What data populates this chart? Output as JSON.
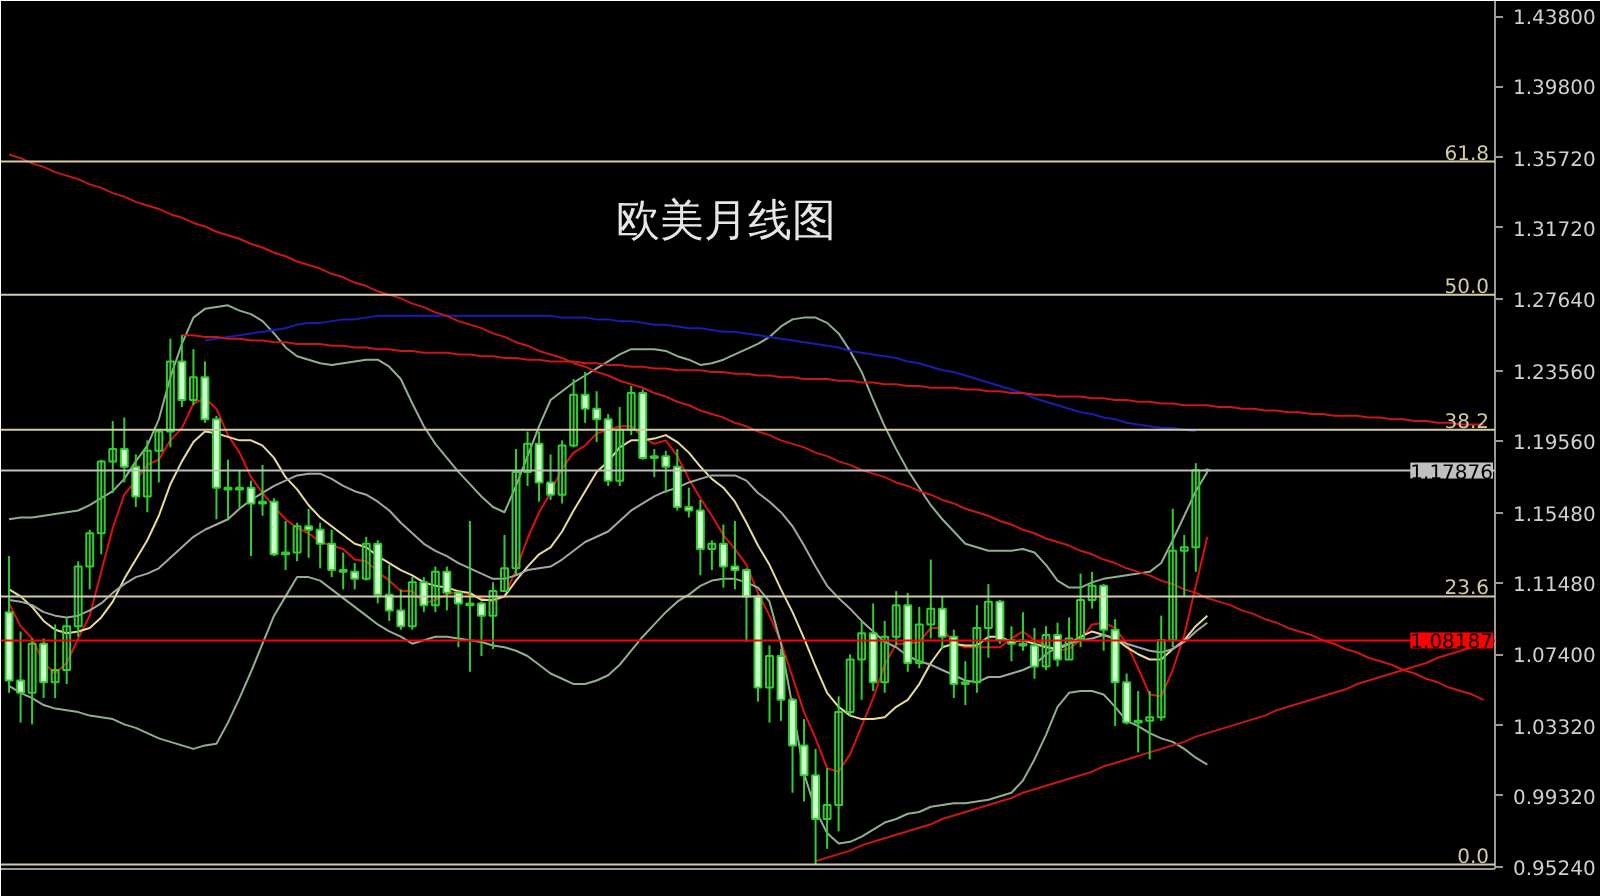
{
  "chart_data": {
    "type": "candlestick",
    "title": "欧美月线图",
    "categories": [
      null,
      null,
      null,
      null,
      null,
      null,
      null,
      null,
      null,
      null,
      null,
      null,
      null,
      null,
      null,
      null,
      null,
      null,
      null,
      null,
      null,
      null,
      null,
      null,
      null,
      null,
      null,
      null,
      null,
      null,
      null,
      null,
      null,
      null,
      null,
      null,
      null,
      null,
      null,
      null,
      null,
      null,
      null,
      null,
      null,
      null,
      null,
      null,
      null,
      null,
      null,
      null,
      null,
      null,
      null,
      null,
      null,
      null,
      null,
      null,
      null,
      null,
      null,
      null,
      null,
      null,
      null,
      null,
      null,
      null,
      null,
      null,
      null,
      null,
      null,
      null,
      null,
      null,
      null,
      null,
      null,
      null,
      null,
      null,
      null,
      null,
      null,
      null,
      null,
      null,
      null,
      null,
      null,
      null,
      null,
      null,
      null,
      null,
      null,
      null,
      null,
      null,
      null,
      null,
      null,
      null,
      null,
      null,
      null,
      null,
      null,
      null,
      null,
      null,
      null,
      null,
      null,
      null,
      null,
      null,
      null,
      null,
      null,
      null,
      null,
      null,
      null,
      null,
      null
    ],
    "ohlc": [
      [
        1.098,
        1.13,
        1.052,
        1.059
      ],
      [
        1.059,
        1.087,
        1.035,
        1.052
      ],
      [
        1.052,
        1.083,
        1.034,
        1.08
      ],
      [
        1.08,
        1.083,
        1.049,
        1.058
      ],
      [
        1.058,
        1.091,
        1.049,
        1.065
      ],
      [
        1.065,
        1.095,
        1.057,
        1.09
      ],
      [
        1.09,
        1.127,
        1.084,
        1.124
      ],
      [
        1.124,
        1.145,
        1.111,
        1.143
      ],
      [
        1.143,
        1.185,
        1.131,
        1.184
      ],
      [
        1.184,
        1.207,
        1.166,
        1.191
      ],
      [
        1.191,
        1.209,
        1.172,
        1.181
      ],
      [
        1.181,
        1.188,
        1.158,
        1.164
      ],
      [
        1.164,
        1.196,
        1.155,
        1.19
      ],
      [
        1.19,
        1.202,
        1.172,
        1.201
      ],
      [
        1.201,
        1.254,
        1.192,
        1.241
      ],
      [
        1.241,
        1.256,
        1.215,
        1.219
      ],
      [
        1.219,
        1.248,
        1.216,
        1.232
      ],
      [
        1.232,
        1.241,
        1.206,
        1.208
      ],
      [
        1.208,
        1.21,
        1.151,
        1.169
      ],
      [
        1.169,
        1.185,
        1.151,
        1.168
      ],
      [
        1.168,
        1.179,
        1.157,
        1.169
      ],
      [
        1.169,
        1.173,
        1.13,
        1.16
      ],
      [
        1.16,
        1.182,
        1.153,
        1.161
      ],
      [
        1.161,
        1.163,
        1.13,
        1.131
      ],
      [
        1.131,
        1.15,
        1.122,
        1.132
      ],
      [
        1.132,
        1.149,
        1.127,
        1.147
      ],
      [
        1.147,
        1.157,
        1.129,
        1.145
      ],
      [
        1.145,
        1.149,
        1.123,
        1.137
      ],
      [
        1.137,
        1.145,
        1.118,
        1.122
      ],
      [
        1.122,
        1.132,
        1.111,
        1.121
      ],
      [
        1.121,
        1.126,
        1.111,
        1.117
      ],
      [
        1.117,
        1.141,
        1.116,
        1.137
      ],
      [
        1.137,
        1.139,
        1.103,
        1.108
      ],
      [
        1.108,
        1.125,
        1.093,
        1.099
      ],
      [
        1.099,
        1.111,
        1.088,
        1.09
      ],
      [
        1.09,
        1.118,
        1.088,
        1.115
      ],
      [
        1.115,
        1.118,
        1.098,
        1.102
      ],
      [
        1.102,
        1.124,
        1.098,
        1.121
      ],
      [
        1.121,
        1.124,
        1.099,
        1.109
      ],
      [
        1.109,
        1.11,
        1.078,
        1.103
      ],
      [
        1.102,
        1.15,
        1.064,
        1.103
      ],
      [
        1.103,
        1.104,
        1.073,
        1.096
      ],
      [
        1.096,
        1.115,
        1.077,
        1.11
      ],
      [
        1.11,
        1.142,
        1.11,
        1.123
      ],
      [
        1.123,
        1.191,
        1.119,
        1.178
      ],
      [
        1.178,
        1.201,
        1.17,
        1.194
      ],
      [
        1.194,
        1.201,
        1.161,
        1.172
      ],
      [
        1.172,
        1.188,
        1.162,
        1.165
      ],
      [
        1.165,
        1.196,
        1.16,
        1.193
      ],
      [
        1.193,
        1.231,
        1.192,
        1.222
      ],
      [
        1.222,
        1.235,
        1.206,
        1.214
      ],
      [
        1.214,
        1.224,
        1.195,
        1.208
      ],
      [
        1.208,
        1.211,
        1.17,
        1.173
      ],
      [
        1.173,
        1.215,
        1.17,
        1.202
      ],
      [
        1.202,
        1.227,
        1.199,
        1.223
      ],
      [
        1.223,
        1.225,
        1.185,
        1.186
      ],
      [
        1.186,
        1.191,
        1.175,
        1.187
      ],
      [
        1.187,
        1.19,
        1.166,
        1.181
      ],
      [
        1.181,
        1.191,
        1.156,
        1.158
      ],
      [
        1.158,
        1.169,
        1.152,
        1.156
      ],
      [
        1.156,
        1.162,
        1.119,
        1.134
      ],
      [
        1.134,
        1.139,
        1.122,
        1.137
      ],
      [
        1.137,
        1.148,
        1.112,
        1.124
      ],
      [
        1.124,
        1.15,
        1.111,
        1.122
      ],
      [
        1.122,
        1.123,
        1.081,
        1.107
      ],
      [
        1.107,
        1.108,
        1.047,
        1.055
      ],
      [
        1.055,
        1.079,
        1.035,
        1.073
      ],
      [
        1.073,
        1.077,
        1.036,
        1.048
      ],
      [
        1.048,
        1.049,
        0.995,
        1.022
      ],
      [
        1.022,
        1.037,
        0.99,
        1.005
      ],
      [
        1.005,
        1.02,
        0.954,
        0.98
      ],
      [
        0.98,
        1.009,
        0.963,
        0.988
      ],
      [
        0.988,
        1.05,
        0.973,
        1.041
      ],
      [
        1.041,
        1.074,
        1.039,
        1.071
      ],
      [
        1.071,
        1.093,
        1.048,
        1.086
      ],
      [
        1.086,
        1.103,
        1.053,
        1.058
      ],
      [
        1.058,
        1.093,
        1.052,
        1.084
      ],
      [
        1.084,
        1.11,
        1.079,
        1.102
      ],
      [
        1.102,
        1.109,
        1.064,
        1.069
      ],
      [
        1.069,
        1.101,
        1.066,
        1.091
      ],
      [
        1.091,
        1.128,
        1.083,
        1.1
      ],
      [
        1.1,
        1.107,
        1.077,
        1.084
      ],
      [
        1.084,
        1.088,
        1.049,
        1.057
      ],
      [
        1.057,
        1.07,
        1.045,
        1.058
      ],
      [
        1.058,
        1.102,
        1.052,
        1.089
      ],
      [
        1.089,
        1.114,
        1.072,
        1.104
      ],
      [
        1.104,
        1.105,
        1.08,
        1.082
      ],
      [
        1.082,
        1.09,
        1.07,
        1.08
      ],
      [
        1.08,
        1.098,
        1.076,
        1.079
      ],
      [
        1.079,
        1.089,
        1.06,
        1.067
      ],
      [
        1.067,
        1.09,
        1.065,
        1.085
      ],
      [
        1.085,
        1.092,
        1.067,
        1.071
      ],
      [
        1.071,
        1.095,
        1.071,
        1.083
      ],
      [
        1.083,
        1.12,
        1.078,
        1.105
      ],
      [
        1.105,
        1.121,
        1.1,
        1.113
      ],
      [
        1.113,
        1.114,
        1.076,
        1.088
      ],
      [
        1.088,
        1.094,
        1.033,
        1.058
      ],
      [
        1.058,
        1.063,
        1.034,
        1.035
      ],
      [
        1.035,
        1.053,
        1.018,
        1.036
      ],
      [
        1.036,
        1.053,
        1.014,
        1.038
      ],
      [
        1.038,
        1.096,
        1.036,
        1.082
      ],
      [
        1.082,
        1.157,
        1.078,
        1.133
      ],
      [
        1.133,
        1.142,
        1.107,
        1.135
      ],
      [
        1.135,
        1.183,
        1.121,
        1.179
      ],
      [
        1.179,
        1.18,
        1.178,
        1.179
      ],
      null,
      null,
      null,
      null,
      null,
      null,
      null,
      null,
      null,
      null,
      null,
      null,
      null,
      null,
      null,
      null,
      null,
      null,
      null,
      null,
      null,
      null,
      null,
      null
    ],
    "color": "#32cd32",
    "colors": [
      "#ccffcc",
      "#ccffcc",
      "#32cd32",
      "#ccffcc",
      "#32cd32",
      "#32cd32",
      "#32cd32",
      "#32cd32",
      "#32cd32",
      "#32cd32",
      "#ccffcc",
      "#ccffcc",
      "#32cd32",
      "#32cd32",
      "#32cd32",
      "#ccffcc",
      "#32cd32",
      "#ccffcc",
      "#ccffcc",
      "#ccffcc",
      "#32cd32",
      "#ccffcc",
      "#32cd32",
      "#ccffcc",
      "#32cd32",
      "#32cd32",
      "#ccffcc",
      "#ccffcc",
      "#ccffcc",
      "#ccffcc",
      "#ccffcc",
      "#32cd32",
      "#ccffcc",
      "#ccffcc",
      "#ccffcc",
      "#32cd32",
      "#ccffcc",
      "#32cd32",
      "#ccffcc",
      "#ccffcc",
      "#32cd32",
      "#ccffcc",
      "#32cd32",
      "#32cd32",
      "#32cd32",
      "#32cd32",
      "#ccffcc",
      "#ccffcc",
      "#32cd32",
      "#32cd32",
      "#ccffcc",
      "#ccffcc",
      "#ccffcc",
      "#32cd32",
      "#32cd32",
      "#ccffcc",
      "#32cd32",
      "#ccffcc",
      "#ccffcc",
      "#ccffcc",
      "#ccffcc",
      "#32cd32",
      "#ccffcc",
      "#ccffcc",
      "#ccffcc",
      "#ccffcc",
      "#32cd32",
      "#ccffcc",
      "#ccffcc",
      "#ccffcc",
      "#ccffcc",
      "#32cd32",
      "#32cd32",
      "#32cd32",
      "#32cd32",
      "#ccffcc",
      "#32cd32",
      "#32cd32",
      "#ccffcc",
      "#32cd32",
      "#32cd32",
      "#ccffcc",
      "#ccffcc",
      "#32cd32",
      "#32cd32",
      "#32cd32",
      "#ccffcc",
      "#ccffcc",
      "#ccffcc",
      "#ccffcc",
      "#32cd32",
      "#ccffcc",
      "#32cd32",
      "#32cd32",
      "#32cd32",
      "#ccffcc",
      "#ccffcc",
      "#ccffcc",
      "#32cd32",
      "#32cd32",
      "#32cd32",
      "#32cd32",
      "#32cd32",
      "#32cd32",
      "#32cd32",
      null,
      null,
      null,
      null,
      null,
      null,
      null,
      null,
      null,
      null,
      null,
      null,
      null,
      null,
      null,
      null,
      null,
      null,
      null,
      null,
      null,
      null,
      null,
      null
    ],
    "ylim": [
      0.9515,
      1.4466
    ],
    "yticks": [
      {
        "value": 1.438,
        "label": "1.43800"
      },
      {
        "value": 1.398,
        "label": "1.39800"
      },
      {
        "value": 1.3572,
        "label": "1.35720"
      },
      {
        "value": 1.3172,
        "label": "1.31720"
      },
      {
        "value": 1.2764,
        "label": "1.27640"
      },
      {
        "value": 1.2356,
        "label": "1.23560"
      },
      {
        "value": 1.1956,
        "label": "1.19560"
      },
      {
        "value": 1.1548,
        "label": "1.15480"
      },
      {
        "value": 1.1148,
        "label": "1.11480"
      },
      {
        "value": 1.074,
        "label": "1.07400"
      },
      {
        "value": 1.0332,
        "label": "1.03320"
      },
      {
        "value": 0.9932,
        "label": "0.99320"
      },
      {
        "value": 0.9524,
        "label": "0.95240"
      }
    ],
    "tick_labels": "y",
    "series": [
      {
        "type": "line",
        "color": "#e01010",
        "values": [
          1.103,
          1.09,
          1.083,
          1.069,
          1.063,
          1.069,
          1.083,
          1.096,
          1.121,
          1.146,
          1.165,
          1.173,
          1.182,
          1.185,
          1.196,
          1.203,
          1.217,
          1.22,
          1.214,
          1.199,
          1.189,
          1.175,
          1.166,
          1.158,
          1.151,
          1.146,
          1.143,
          1.138,
          1.136,
          1.134,
          1.128,
          1.127,
          1.121,
          1.116,
          1.11,
          1.11,
          1.103,
          1.105,
          1.108,
          1.11,
          1.108,
          1.106,
          1.104,
          1.107,
          1.122,
          1.14,
          1.155,
          1.166,
          1.18,
          1.189,
          1.193,
          1.2,
          1.202,
          1.204,
          1.204,
          1.198,
          1.194,
          1.196,
          1.187,
          1.174,
          1.163,
          1.153,
          1.142,
          1.134,
          1.125,
          1.109,
          1.096,
          1.081,
          1.061,
          1.041,
          1.026,
          1.009,
          1.007,
          1.017,
          1.033,
          1.049,
          1.068,
          1.08,
          1.08,
          1.081,
          1.089,
          1.089,
          1.08,
          1.078,
          1.078,
          1.078,
          1.078,
          1.083,
          1.087,
          1.082,
          1.079,
          1.076,
          1.077,
          1.082,
          1.091,
          1.092,
          1.089,
          1.08,
          1.066,
          1.051,
          1.05,
          1.065,
          1.085,
          1.113,
          1.141,
          null,
          null,
          null,
          null,
          null,
          null,
          null,
          null,
          null,
          null,
          null,
          null,
          null,
          null,
          null,
          null,
          null,
          null,
          null,
          null,
          null,
          null,
          null,
          null
        ]
      },
      {
        "type": "line",
        "color": "#e8dc96",
        "values": [
          1.111,
          1.107,
          1.101,
          1.093,
          1.088,
          1.086,
          1.087,
          1.089,
          1.095,
          1.104,
          1.117,
          1.128,
          1.139,
          1.153,
          1.171,
          1.184,
          1.195,
          1.201,
          1.2,
          1.198,
          1.196,
          1.196,
          1.193,
          1.186,
          1.175,
          1.168,
          1.159,
          1.152,
          1.147,
          1.142,
          1.137,
          1.135,
          1.13,
          1.126,
          1.122,
          1.119,
          1.115,
          1.113,
          1.112,
          1.11,
          1.109,
          1.105,
          1.105,
          1.107,
          1.116,
          1.124,
          1.131,
          1.135,
          1.144,
          1.156,
          1.167,
          1.178,
          1.184,
          1.192,
          1.196,
          1.196,
          1.197,
          1.199,
          1.195,
          1.189,
          1.181,
          1.174,
          1.169,
          1.161,
          1.149,
          1.136,
          1.125,
          1.111,
          1.098,
          1.083,
          1.067,
          1.052,
          1.044,
          1.039,
          1.037,
          1.037,
          1.038,
          1.044,
          1.048,
          1.057,
          1.069,
          1.078,
          1.08,
          1.079,
          1.079,
          1.084,
          1.084,
          1.081,
          1.082,
          1.08,
          1.078,
          1.077,
          1.08,
          1.084,
          1.087,
          1.085,
          1.083,
          1.078,
          1.074,
          1.071,
          1.071,
          1.077,
          1.082,
          1.09,
          1.096,
          null,
          null,
          null,
          null,
          null,
          null,
          null,
          null,
          null,
          null,
          null,
          null,
          null,
          null,
          null,
          null,
          null,
          null,
          null,
          null,
          null,
          null,
          null,
          null
        ]
      },
      {
        "type": "line",
        "color": "#a0a8a0",
        "values": [
          1.105,
          1.104,
          1.102,
          1.098,
          1.096,
          1.095,
          1.096,
          1.099,
          1.103,
          1.109,
          1.114,
          1.118,
          1.12,
          1.123,
          1.129,
          1.135,
          1.141,
          1.145,
          1.148,
          1.151,
          1.157,
          1.162,
          1.166,
          1.17,
          1.173,
          1.176,
          1.177,
          1.177,
          1.174,
          1.17,
          1.167,
          1.165,
          1.161,
          1.156,
          1.149,
          1.143,
          1.137,
          1.133,
          1.13,
          1.126,
          1.123,
          1.12,
          1.117,
          1.117,
          1.119,
          1.122,
          1.123,
          1.124,
          1.128,
          1.133,
          1.138,
          1.141,
          1.144,
          1.15,
          1.156,
          1.16,
          1.164,
          1.167,
          1.169,
          1.172,
          1.174,
          1.176,
          1.176,
          1.176,
          1.173,
          1.166,
          1.161,
          1.155,
          1.147,
          1.136,
          1.124,
          1.113,
          1.106,
          1.1,
          1.093,
          1.087,
          1.081,
          1.078,
          1.073,
          1.07,
          1.068,
          1.065,
          1.062,
          1.059,
          1.058,
          1.061,
          1.061,
          1.063,
          1.065,
          1.068,
          1.074,
          1.078,
          1.08,
          1.082,
          1.083,
          1.085,
          1.083,
          1.08,
          1.078,
          1.076,
          1.075,
          1.077,
          1.081,
          1.087,
          1.092,
          null,
          null,
          null,
          null,
          null,
          null,
          null,
          null,
          null,
          null,
          null,
          null,
          null,
          null,
          null,
          null,
          null,
          null,
          null,
          null,
          null,
          null,
          null,
          null
        ]
      },
      {
        "type": "line",
        "color": "#8fb08f",
        "values": [
          1.151,
          1.152,
          1.152,
          1.153,
          1.154,
          1.155,
          1.156,
          1.159,
          1.163,
          1.167,
          1.174,
          1.184,
          1.193,
          1.208,
          1.232,
          1.251,
          1.266,
          1.271,
          1.272,
          1.273,
          1.27,
          1.268,
          1.264,
          1.257,
          1.249,
          1.244,
          1.242,
          1.24,
          1.239,
          1.24,
          1.241,
          1.242,
          1.242,
          1.238,
          1.231,
          1.217,
          1.204,
          1.194,
          1.186,
          1.178,
          1.171,
          1.164,
          1.158,
          1.155,
          1.17,
          1.187,
          1.204,
          1.219,
          1.224,
          1.229,
          1.233,
          1.237,
          1.241,
          1.245,
          1.248,
          1.248,
          1.248,
          1.247,
          1.244,
          1.242,
          1.239,
          1.24,
          1.242,
          1.245,
          1.248,
          1.251,
          1.255,
          1.261,
          1.265,
          1.266,
          1.266,
          1.263,
          1.257,
          1.247,
          1.235,
          1.219,
          1.204,
          1.191,
          1.179,
          1.169,
          1.159,
          1.151,
          1.144,
          1.137,
          1.135,
          1.133,
          1.133,
          1.133,
          1.134,
          1.132,
          1.125,
          1.116,
          1.112,
          1.112,
          1.115,
          1.117,
          1.118,
          1.119,
          1.12,
          1.121,
          1.126,
          1.139,
          1.153,
          1.167,
          1.178,
          null,
          null,
          null,
          null,
          null,
          null,
          null,
          null,
          null,
          null,
          null,
          null,
          null,
          null,
          null,
          null,
          null,
          null,
          null,
          null,
          null,
          null,
          null,
          null
        ]
      },
      {
        "type": "line",
        "color": "#8fb08f",
        "values": [
          1.056,
          1.052,
          1.049,
          1.045,
          1.043,
          1.042,
          1.041,
          1.039,
          1.038,
          1.037,
          1.034,
          1.032,
          1.029,
          1.026,
          1.024,
          1.022,
          1.02,
          1.022,
          1.023,
          1.035,
          1.049,
          1.064,
          1.08,
          1.096,
          1.107,
          1.118,
          1.118,
          1.116,
          1.111,
          1.106,
          1.101,
          1.096,
          1.091,
          1.087,
          1.084,
          1.08,
          1.082,
          1.084,
          1.084,
          1.083,
          1.082,
          1.081,
          1.079,
          1.078,
          1.076,
          1.073,
          1.068,
          1.063,
          1.06,
          1.057,
          1.057,
          1.059,
          1.062,
          1.068,
          1.076,
          1.084,
          1.091,
          1.098,
          1.104,
          1.108,
          1.113,
          1.116,
          1.117,
          1.117,
          1.115,
          1.112,
          1.104,
          1.08,
          1.044,
          1.006,
          0.985,
          0.972,
          0.966,
          0.967,
          0.97,
          0.974,
          0.978,
          0.98,
          0.983,
          0.984,
          0.987,
          0.988,
          0.989,
          0.989,
          0.99,
          0.991,
          0.993,
          0.995,
          1.002,
          1.014,
          1.028,
          1.044,
          1.052,
          1.053,
          1.053,
          1.051,
          1.044,
          1.036,
          1.033,
          1.029,
          1.026,
          1.024,
          1.02,
          1.015,
          1.011,
          null,
          null,
          null,
          null,
          null,
          null,
          null,
          null,
          null,
          null,
          null,
          null,
          null,
          null,
          null,
          null,
          null,
          null,
          null,
          null,
          null,
          null,
          null,
          null
        ]
      },
      {
        "type": "line",
        "color": "#1c1cb0",
        "values": [
          null,
          null,
          null,
          null,
          null,
          null,
          null,
          null,
          null,
          null,
          null,
          null,
          null,
          null,
          null,
          null,
          null,
          1.253,
          1.254,
          1.255,
          1.256,
          1.257,
          1.258,
          1.259,
          1.26,
          1.262,
          1.263,
          1.263,
          1.264,
          1.265,
          1.265,
          1.266,
          1.267,
          1.267,
          1.267,
          1.267,
          1.267,
          1.267,
          1.267,
          1.267,
          1.267,
          1.267,
          1.267,
          1.267,
          1.267,
          1.267,
          1.267,
          1.267,
          1.266,
          1.266,
          1.266,
          1.265,
          1.265,
          1.264,
          1.264,
          1.263,
          1.262,
          1.262,
          1.261,
          1.26,
          1.26,
          1.259,
          1.258,
          1.258,
          1.257,
          1.256,
          1.255,
          1.254,
          1.253,
          1.252,
          1.251,
          1.25,
          1.249,
          1.247,
          1.246,
          1.245,
          1.244,
          1.243,
          1.241,
          1.24,
          1.238,
          1.236,
          1.235,
          1.233,
          1.231,
          1.229,
          1.227,
          1.225,
          1.223,
          1.22,
          1.218,
          1.216,
          1.214,
          1.212,
          1.211,
          1.209,
          1.208,
          1.206,
          1.205,
          1.204,
          1.203,
          1.203,
          1.202,
          1.201,
          null,
          null,
          null,
          null,
          null,
          null,
          null,
          null,
          null,
          null,
          null,
          null,
          null,
          null,
          null,
          null,
          null,
          null,
          null,
          null,
          null,
          null,
          null,
          null,
          null
        ]
      },
      {
        "type": "line",
        "color": "#c81818",
        "values": [
          1.359,
          1.357,
          1.354,
          1.352,
          1.349,
          1.347,
          1.345,
          1.342,
          1.34,
          1.337,
          1.335,
          1.332,
          1.33,
          1.328,
          1.325,
          1.323,
          1.32,
          1.318,
          1.315,
          1.313,
          1.311,
          1.308,
          1.306,
          1.303,
          1.301,
          1.298,
          1.296,
          1.294,
          1.291,
          1.289,
          1.286,
          1.284,
          1.281,
          1.279,
          1.277,
          1.274,
          1.272,
          1.269,
          1.267,
          1.264,
          1.262,
          1.26,
          1.257,
          1.255,
          1.252,
          1.25,
          1.247,
          1.245,
          1.243,
          1.24,
          1.238,
          1.235,
          1.233,
          1.23,
          1.228,
          1.226,
          1.223,
          1.221,
          1.218,
          1.216,
          1.213,
          1.211,
          1.209,
          1.206,
          1.204,
          1.201,
          1.199,
          1.196,
          1.194,
          1.192,
          1.189,
          1.187,
          1.184,
          1.182,
          1.179,
          1.177,
          1.175,
          1.172,
          1.17,
          1.167,
          1.165,
          1.162,
          1.16,
          1.157,
          1.155,
          1.153,
          1.15,
          1.148,
          1.145,
          1.143,
          1.14,
          1.138,
          1.136,
          1.133,
          1.131,
          1.128,
          1.126,
          1.123,
          1.121,
          1.119,
          1.116,
          1.114,
          1.111,
          1.109,
          1.106,
          1.104,
          1.102,
          1.099,
          1.097,
          1.094,
          1.092,
          1.089,
          1.087,
          1.085,
          1.082,
          1.08,
          1.077,
          1.075,
          1.072,
          1.07,
          1.068,
          1.065,
          1.063,
          1.06,
          1.058,
          1.055,
          1.053,
          1.051,
          1.048
        ]
      },
      {
        "type": "line",
        "color": "#c81818",
        "values": [
          null,
          null,
          null,
          null,
          null,
          null,
          null,
          null,
          null,
          null,
          null,
          null,
          null,
          null,
          null,
          1.256,
          1.256,
          1.255,
          1.255,
          1.254,
          1.254,
          1.253,
          1.253,
          1.252,
          1.252,
          1.251,
          1.251,
          1.251,
          1.25,
          1.25,
          1.249,
          1.249,
          1.248,
          1.248,
          1.247,
          1.247,
          1.246,
          1.246,
          1.246,
          1.245,
          1.245,
          1.244,
          1.244,
          1.243,
          1.243,
          1.242,
          1.242,
          1.241,
          1.241,
          1.241,
          1.24,
          1.24,
          1.239,
          1.239,
          1.238,
          1.238,
          1.237,
          1.237,
          1.236,
          1.236,
          1.236,
          1.235,
          1.235,
          1.234,
          1.234,
          1.233,
          1.233,
          1.232,
          1.232,
          1.231,
          1.231,
          1.231,
          1.23,
          1.23,
          1.229,
          1.229,
          1.228,
          1.228,
          1.227,
          1.227,
          1.226,
          1.226,
          1.226,
          1.225,
          1.225,
          1.224,
          1.224,
          1.223,
          1.223,
          1.222,
          1.222,
          1.221,
          1.221,
          1.221,
          1.22,
          1.22,
          1.219,
          1.219,
          1.218,
          1.218,
          1.217,
          1.217,
          1.216,
          1.216,
          1.216,
          1.215,
          1.215,
          1.214,
          1.214,
          1.213,
          1.213,
          1.212,
          1.212,
          1.211,
          1.211,
          1.21,
          1.21,
          1.21,
          1.209,
          1.209,
          1.208,
          1.208,
          1.207,
          1.207,
          1.206,
          1.206,
          1.205,
          1.205,
          1.205
        ]
      },
      {
        "type": "line",
        "color": "#c81818",
        "values": [
          null,
          null,
          null,
          null,
          null,
          null,
          null,
          null,
          null,
          null,
          null,
          null,
          null,
          null,
          null,
          null,
          null,
          null,
          null,
          null,
          null,
          null,
          null,
          null,
          null,
          null,
          null,
          null,
          null,
          null,
          null,
          null,
          null,
          null,
          null,
          null,
          null,
          null,
          null,
          null,
          null,
          null,
          null,
          null,
          null,
          null,
          null,
          null,
          null,
          null,
          null,
          null,
          null,
          null,
          null,
          null,
          null,
          null,
          null,
          null,
          null,
          null,
          null,
          null,
          null,
          null,
          null,
          null,
          null,
          null,
          0.956,
          0.958,
          0.96,
          0.962,
          0.965,
          0.967,
          0.969,
          0.971,
          0.973,
          0.975,
          0.977,
          0.98,
          0.982,
          0.984,
          0.986,
          0.988,
          0.99,
          0.992,
          0.995,
          0.997,
          0.999,
          1.001,
          1.003,
          1.005,
          1.007,
          1.01,
          1.012,
          1.014,
          1.016,
          1.018,
          1.02,
          1.022,
          1.024,
          1.027,
          1.029,
          1.031,
          1.033,
          1.035,
          1.037,
          1.039,
          1.042,
          1.044,
          1.046,
          1.048,
          1.05,
          1.052,
          1.054,
          1.057,
          1.059,
          1.061,
          1.063,
          1.065,
          1.067,
          1.069,
          1.072,
          1.074,
          1.076,
          1.078,
          1.08
        ]
      }
    ],
    "ref_lines": [
      {
        "axis": "y",
        "value": 1.355,
        "color": "#d4cca4"
      },
      {
        "axis": "y",
        "value": 1.279,
        "color": "#d4cca4"
      },
      {
        "axis": "y",
        "value": 1.202,
        "color": "#d4cca4"
      },
      {
        "axis": "y",
        "value": 1.107,
        "color": "#d4cca4"
      },
      {
        "axis": "y",
        "value": 0.954,
        "color": "#d4cca4"
      },
      {
        "axis": "y",
        "value": 1.17876,
        "label": "1.17876",
        "color": "#c0c0c0"
      },
      {
        "axis": "y",
        "value": 1.08187,
        "label": "1.08187",
        "color": "#ff0000"
      }
    ],
    "annotations": [
      {
        "text": "61.8",
        "y": 1.355
      },
      {
        "text": "50.0",
        "y": 1.279
      },
      {
        "text": "38.2",
        "y": 1.202
      },
      {
        "text": "23.6",
        "y": 1.107
      },
      {
        "text": "0.0",
        "y": 0.954
      }
    ]
  }
}
